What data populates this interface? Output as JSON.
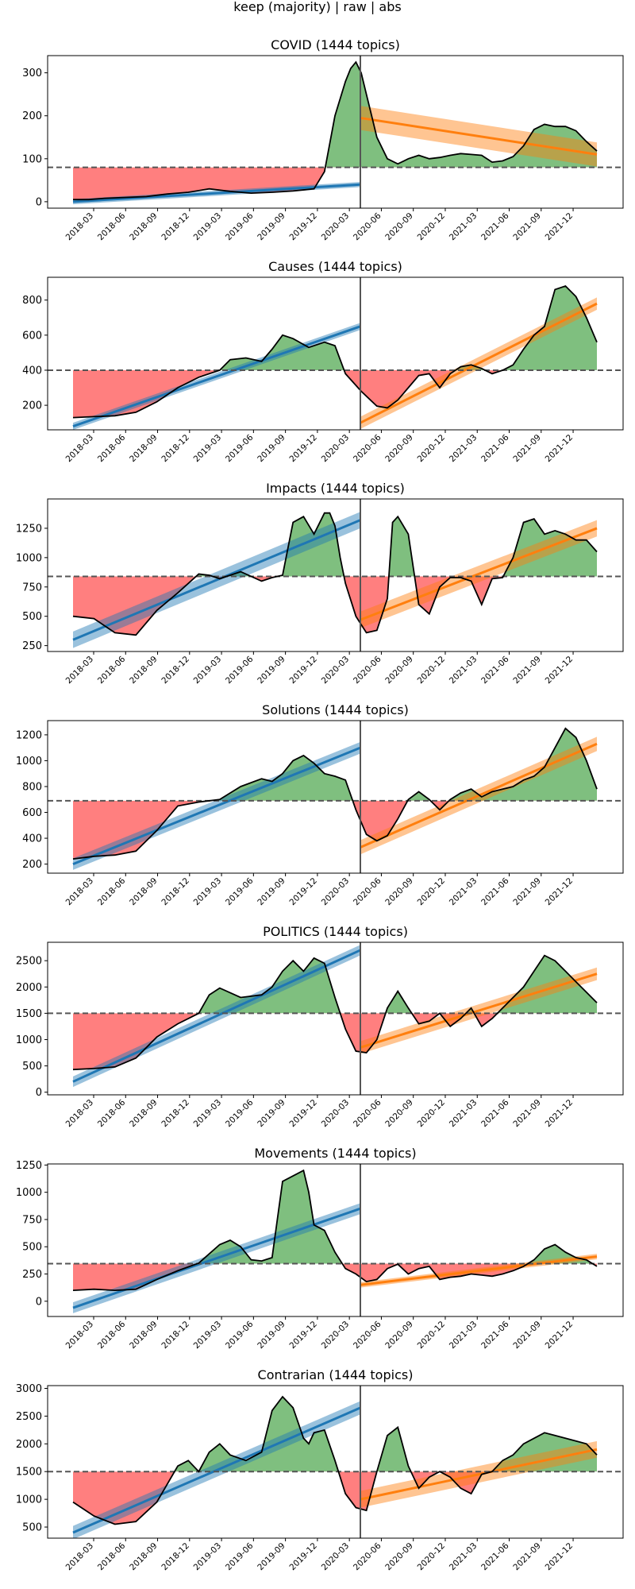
{
  "page_title": "keep (majority) | raw | abs",
  "x_tick_labels": [
    "2018-03",
    "2018-06",
    "2018-09",
    "2018-12",
    "2019-03",
    "2019-06",
    "2019-09",
    "2019-12",
    "2020-03",
    "2020-06",
    "2020-09",
    "2020-12",
    "2021-03",
    "2021-06",
    "2021-09",
    "2021-12"
  ],
  "colors": {
    "above": "#7fbf7f",
    "below": "#ff7f7f",
    "line": "#000000",
    "fit_pre": "#1f77b4",
    "fit_post": "#ff7f0e",
    "baseline": "#555555",
    "split": "#555555"
  },
  "chart_data": [
    {
      "type": "area",
      "title": "COVID (1444 topics)",
      "ylim": [
        -15,
        340
      ],
      "yticks": [
        0,
        100,
        200,
        300
      ],
      "baseline": 80,
      "x": [
        0,
        0.03,
        0.06,
        0.1,
        0.14,
        0.18,
        0.22,
        0.26,
        0.3,
        0.34,
        0.38,
        0.42,
        0.46,
        0.48,
        0.5,
        0.51,
        0.52,
        0.53,
        0.54,
        0.55,
        0.56,
        0.57,
        0.58,
        0.6,
        0.62,
        0.64,
        0.66,
        0.68,
        0.7,
        0.72,
        0.74,
        0.76,
        0.78,
        0.8,
        0.82,
        0.84,
        0.86,
        0.88,
        0.9,
        0.92,
        0.94,
        0.96,
        0.98,
        1
      ],
      "y": [
        5,
        5,
        8,
        10,
        12,
        18,
        22,
        30,
        24,
        20,
        22,
        25,
        30,
        70,
        200,
        240,
        280,
        310,
        325,
        300,
        250,
        200,
        150,
        100,
        88,
        100,
        108,
        100,
        103,
        108,
        112,
        110,
        108,
        92,
        95,
        105,
        130,
        168,
        180,
        175,
        175,
        165,
        140,
        118
      ],
      "fit_pre": {
        "start": 0,
        "end": 40,
        "band": 6
      },
      "fit_post": {
        "start": 195,
        "end": 110,
        "band": 28
      }
    },
    {
      "type": "area",
      "title": "Causes (1444 topics)",
      "ylim": [
        60,
        930
      ],
      "yticks": [
        200,
        400,
        600,
        800
      ],
      "baseline": 400,
      "x": [
        0,
        0.04,
        0.08,
        0.12,
        0.16,
        0.2,
        0.24,
        0.28,
        0.3,
        0.33,
        0.36,
        0.38,
        0.4,
        0.42,
        0.45,
        0.48,
        0.5,
        0.52,
        0.55,
        0.58,
        0.6,
        0.62,
        0.64,
        0.66,
        0.68,
        0.7,
        0.72,
        0.74,
        0.76,
        0.78,
        0.8,
        0.82,
        0.84,
        0.86,
        0.88,
        0.9,
        0.92,
        0.94,
        0.96,
        0.98,
        1
      ],
      "y": [
        130,
        135,
        140,
        160,
        220,
        300,
        360,
        400,
        460,
        470,
        450,
        520,
        600,
        580,
        530,
        560,
        540,
        380,
        280,
        195,
        185,
        230,
        300,
        370,
        380,
        300,
        380,
        420,
        430,
        410,
        380,
        400,
        430,
        520,
        600,
        650,
        860,
        880,
        820,
        700,
        560
      ],
      "fit_pre": {
        "start": 80,
        "end": 650,
        "band": 20
      },
      "fit_post": {
        "start": 100,
        "end": 780,
        "band": 35
      }
    },
    {
      "type": "area",
      "title": "Impacts (1444 topics)",
      "ylim": [
        200,
        1500
      ],
      "yticks": [
        250,
        500,
        750,
        1000,
        1250
      ],
      "baseline": 840,
      "x": [
        0,
        0.04,
        0.08,
        0.12,
        0.16,
        0.2,
        0.24,
        0.26,
        0.28,
        0.32,
        0.36,
        0.38,
        0.4,
        0.42,
        0.44,
        0.46,
        0.48,
        0.49,
        0.5,
        0.51,
        0.52,
        0.54,
        0.56,
        0.58,
        0.6,
        0.61,
        0.62,
        0.64,
        0.66,
        0.68,
        0.7,
        0.72,
        0.74,
        0.76,
        0.78,
        0.8,
        0.82,
        0.84,
        0.86,
        0.88,
        0.9,
        0.92,
        0.94,
        0.96,
        0.98,
        1
      ],
      "y": [
        500,
        480,
        360,
        340,
        550,
        700,
        860,
        850,
        820,
        880,
        800,
        830,
        850,
        1300,
        1350,
        1200,
        1380,
        1380,
        1270,
        1000,
        780,
        500,
        360,
        380,
        650,
        1300,
        1350,
        1200,
        600,
        520,
        750,
        830,
        830,
        800,
        600,
        820,
        830,
        1000,
        1300,
        1330,
        1200,
        1230,
        1200,
        1150,
        1150,
        1050
      ],
      "fit_pre": {
        "start": 300,
        "end": 1320,
        "band": 70
      },
      "fit_post": {
        "start": 470,
        "end": 1250,
        "band": 70
      }
    },
    {
      "type": "area",
      "title": "Solutions (1444 topics)",
      "ylim": [
        130,
        1310
      ],
      "yticks": [
        200,
        400,
        600,
        800,
        1000,
        1200
      ],
      "baseline": 690,
      "x": [
        0,
        0.04,
        0.08,
        0.12,
        0.16,
        0.2,
        0.24,
        0.28,
        0.32,
        0.36,
        0.38,
        0.4,
        0.42,
        0.44,
        0.46,
        0.48,
        0.5,
        0.52,
        0.54,
        0.56,
        0.58,
        0.6,
        0.62,
        0.64,
        0.66,
        0.68,
        0.7,
        0.72,
        0.74,
        0.76,
        0.78,
        0.8,
        0.82,
        0.84,
        0.86,
        0.88,
        0.9,
        0.92,
        0.94,
        0.96,
        0.98,
        1
      ],
      "y": [
        240,
        260,
        270,
        300,
        460,
        650,
        680,
        700,
        800,
        860,
        840,
        900,
        1000,
        1040,
        980,
        900,
        880,
        850,
        620,
        430,
        380,
        420,
        550,
        700,
        760,
        700,
        620,
        700,
        750,
        780,
        720,
        760,
        780,
        800,
        850,
        880,
        950,
        1100,
        1250,
        1180,
        1000,
        780
      ],
      "fit_pre": {
        "start": 200,
        "end": 1100,
        "band": 45
      },
      "fit_post": {
        "start": 330,
        "end": 1130,
        "band": 55
      }
    },
    {
      "type": "area",
      "title": "POLITICS (1444 topics)",
      "ylim": [
        -50,
        2850
      ],
      "yticks": [
        0,
        500,
        1000,
        1500,
        2000,
        2500
      ],
      "baseline": 1500,
      "x": [
        0,
        0.04,
        0.08,
        0.12,
        0.16,
        0.2,
        0.24,
        0.26,
        0.28,
        0.32,
        0.36,
        0.38,
        0.4,
        0.42,
        0.44,
        0.46,
        0.48,
        0.5,
        0.52,
        0.54,
        0.56,
        0.58,
        0.6,
        0.62,
        0.64,
        0.66,
        0.68,
        0.7,
        0.72,
        0.74,
        0.76,
        0.78,
        0.8,
        0.82,
        0.84,
        0.86,
        0.88,
        0.9,
        0.92,
        0.94,
        0.96,
        0.98,
        1
      ],
      "y": [
        430,
        450,
        480,
        650,
        1050,
        1300,
        1500,
        1850,
        1980,
        1800,
        1850,
        2000,
        2300,
        2500,
        2300,
        2550,
        2450,
        1800,
        1200,
        780,
        750,
        1000,
        1600,
        1920,
        1600,
        1300,
        1350,
        1500,
        1250,
        1400,
        1600,
        1250,
        1400,
        1600,
        1800,
        2000,
        2300,
        2600,
        2500,
        2300,
        2100,
        1900,
        1700
      ],
      "fit_pre": {
        "start": 200,
        "end": 2700,
        "band": 100
      },
      "fit_post": {
        "start": 850,
        "end": 2250,
        "band": 120
      }
    },
    {
      "type": "area",
      "title": "Movements (1444 topics)",
      "ylim": [
        -140,
        1260
      ],
      "yticks": [
        0,
        250,
        500,
        750,
        1000,
        1250
      ],
      "baseline": 345,
      "x": [
        0,
        0.04,
        0.08,
        0.12,
        0.16,
        0.2,
        0.24,
        0.28,
        0.3,
        0.32,
        0.34,
        0.36,
        0.38,
        0.4,
        0.42,
        0.44,
        0.45,
        0.46,
        0.48,
        0.5,
        0.52,
        0.54,
        0.56,
        0.58,
        0.6,
        0.62,
        0.64,
        0.66,
        0.68,
        0.7,
        0.72,
        0.74,
        0.76,
        0.78,
        0.8,
        0.82,
        0.84,
        0.86,
        0.88,
        0.9,
        0.92,
        0.94,
        0.96,
        0.98,
        1
      ],
      "y": [
        100,
        110,
        100,
        110,
        200,
        280,
        350,
        520,
        560,
        500,
        380,
        370,
        400,
        1100,
        1150,
        1200,
        1000,
        700,
        650,
        450,
        300,
        250,
        180,
        200,
        300,
        340,
        250,
        300,
        320,
        200,
        220,
        230,
        250,
        240,
        230,
        250,
        280,
        320,
        380,
        480,
        520,
        450,
        400,
        380,
        320
      ],
      "fit_pre": {
        "start": -60,
        "end": 850,
        "band": 50
      },
      "fit_post": {
        "start": 150,
        "end": 410,
        "band": 25
      }
    },
    {
      "type": "area",
      "title": "Contrarian (1444 topics)",
      "ylim": [
        300,
        3050
      ],
      "yticks": [
        500,
        1000,
        1500,
        2000,
        2500,
        3000
      ],
      "baseline": 1500,
      "x": [
        0,
        0.04,
        0.08,
        0.12,
        0.16,
        0.2,
        0.22,
        0.24,
        0.26,
        0.28,
        0.3,
        0.33,
        0.36,
        0.38,
        0.4,
        0.42,
        0.44,
        0.45,
        0.46,
        0.48,
        0.5,
        0.52,
        0.54,
        0.56,
        0.58,
        0.6,
        0.62,
        0.64,
        0.66,
        0.68,
        0.7,
        0.72,
        0.74,
        0.76,
        0.78,
        0.8,
        0.82,
        0.84,
        0.86,
        0.88,
        0.9,
        0.92,
        0.94,
        0.96,
        0.98,
        1
      ],
      "y": [
        950,
        700,
        550,
        600,
        950,
        1600,
        1700,
        1500,
        1850,
        2000,
        1800,
        1700,
        1850,
        2600,
        2850,
        2650,
        2100,
        2000,
        2200,
        2250,
        1700,
        1100,
        850,
        800,
        1500,
        2150,
        2300,
        1600,
        1200,
        1400,
        1500,
        1400,
        1200,
        1100,
        1450,
        1500,
        1700,
        1800,
        2000,
        2100,
        2200,
        2150,
        2100,
        2050,
        2000,
        1800
      ],
      "fit_pre": {
        "start": 400,
        "end": 2650,
        "band": 120
      },
      "fit_post": {
        "start": 1000,
        "end": 1900,
        "band": 150
      }
    }
  ]
}
